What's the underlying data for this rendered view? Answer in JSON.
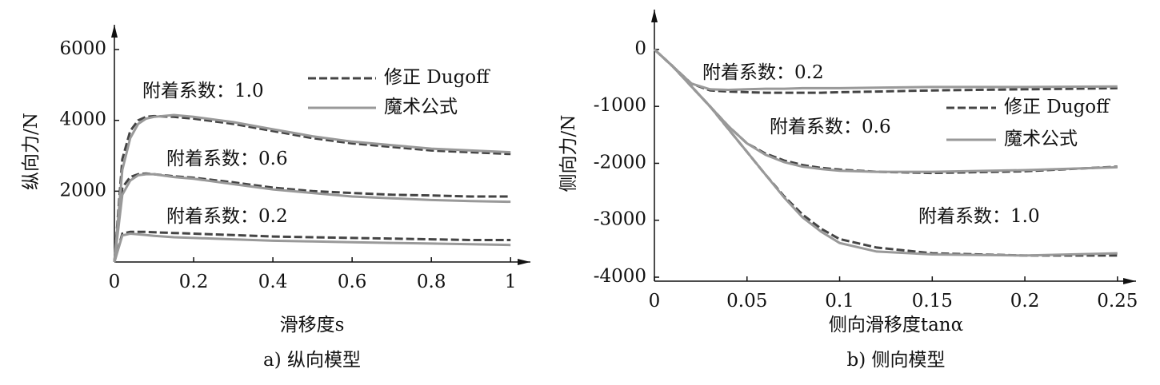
{
  "chart_data": [
    {
      "type": "line",
      "xlabel": "滑移度s",
      "ylabel": "纵向力/N",
      "caption": "a) 纵向模型",
      "xlim": [
        0,
        1.05
      ],
      "ylim": [
        0,
        6700
      ],
      "xticks": [
        0,
        0.2,
        0.4,
        0.6,
        0.8,
        1
      ],
      "yticks": [
        2000,
        4000,
        6000
      ],
      "x": [
        0,
        0.02,
        0.04,
        0.06,
        0.08,
        0.1,
        0.15,
        0.2,
        0.3,
        0.4,
        0.5,
        0.6,
        0.7,
        0.8,
        0.9,
        1.0
      ],
      "series": [
        {
          "name": "修正 Dugoff",
          "color": "#444444",
          "dash": true,
          "curves": [
            [
              0,
              2900,
              3700,
              4000,
              4100,
              4120,
              4100,
              4050,
              3900,
              3700,
              3500,
              3350,
              3250,
              3150,
              3100,
              3050
            ],
            [
              0,
              2100,
              2400,
              2480,
              2500,
              2480,
              2420,
              2380,
              2250,
              2100,
              2000,
              1950,
              1900,
              1880,
              1850,
              1850
            ],
            [
              0,
              800,
              850,
              850,
              850,
              840,
              820,
              800,
              760,
              720,
              700,
              680,
              660,
              640,
              620,
              620
            ]
          ]
        },
        {
          "name": "魔术公式",
          "color": "#999999",
          "dash": false,
          "curves": [
            [
              0,
              2600,
              3500,
              3900,
              4050,
              4100,
              4150,
              4100,
              3950,
              3750,
              3550,
              3400,
              3300,
              3200,
              3150,
              3100
            ],
            [
              0,
              1900,
              2300,
              2450,
              2480,
              2480,
              2400,
              2350,
              2200,
              2050,
              1950,
              1850,
              1800,
              1750,
              1720,
              1700
            ],
            [
              0,
              750,
              800,
              780,
              760,
              740,
              700,
              680,
              640,
              600,
              580,
              560,
              540,
              520,
              500,
              480
            ]
          ]
        }
      ],
      "annotations": [
        "附着系数：1.0",
        "附着系数：0.6",
        "附着系数：0.2"
      ]
    },
    {
      "type": "line",
      "xlabel": "侧向滑移度tanα",
      "ylabel": "侧向力/N",
      "caption": "b) 侧向模型",
      "xlim": [
        0,
        0.26
      ],
      "ylim": [
        -4070,
        700
      ],
      "xticks": [
        0,
        0.05,
        0.1,
        0.15,
        0.2,
        0.25
      ],
      "yticks": [
        0,
        -1000,
        -2000,
        -3000,
        -4000
      ],
      "x": [
        0,
        0.01,
        0.02,
        0.03,
        0.04,
        0.05,
        0.06,
        0.07,
        0.08,
        0.09,
        0.1,
        0.12,
        0.15,
        0.2,
        0.25
      ],
      "series": [
        {
          "name": "修正 Dugoff",
          "color": "#444444",
          "dash": true,
          "curves": [
            [
              0,
              -300,
              -600,
              -720,
              -740,
              -750,
              -760,
              -760,
              -760,
              -760,
              -750,
              -740,
              -720,
              -700,
              -680
            ],
            [
              0,
              -300,
              -650,
              -1000,
              -1350,
              -1650,
              -1830,
              -1950,
              -2030,
              -2080,
              -2110,
              -2150,
              -2170,
              -2140,
              -2060
            ],
            [
              0,
              -300,
              -650,
              -1000,
              -1400,
              -1800,
              -2200,
              -2580,
              -2900,
              -3150,
              -3330,
              -3480,
              -3580,
              -3620,
              -3620
            ]
          ]
        },
        {
          "name": "魔术公式",
          "color": "#999999",
          "dash": false,
          "curves": [
            [
              0,
              -300,
              -600,
              -700,
              -710,
              -700,
              -690,
              -690,
              -680,
              -680,
              -680,
              -670,
              -660,
              -660,
              -650
            ],
            [
              0,
              -300,
              -650,
              -1000,
              -1350,
              -1650,
              -1850,
              -1980,
              -2060,
              -2100,
              -2130,
              -2150,
              -2150,
              -2120,
              -2070
            ],
            [
              0,
              -300,
              -650,
              -1000,
              -1400,
              -1800,
              -2200,
              -2600,
              -2950,
              -3200,
              -3400,
              -3550,
              -3600,
              -3620,
              -3580
            ]
          ]
        }
      ],
      "annotations": [
        "附着系数：0.2",
        "附着系数：0.6",
        "附着系数：1.0"
      ]
    }
  ]
}
